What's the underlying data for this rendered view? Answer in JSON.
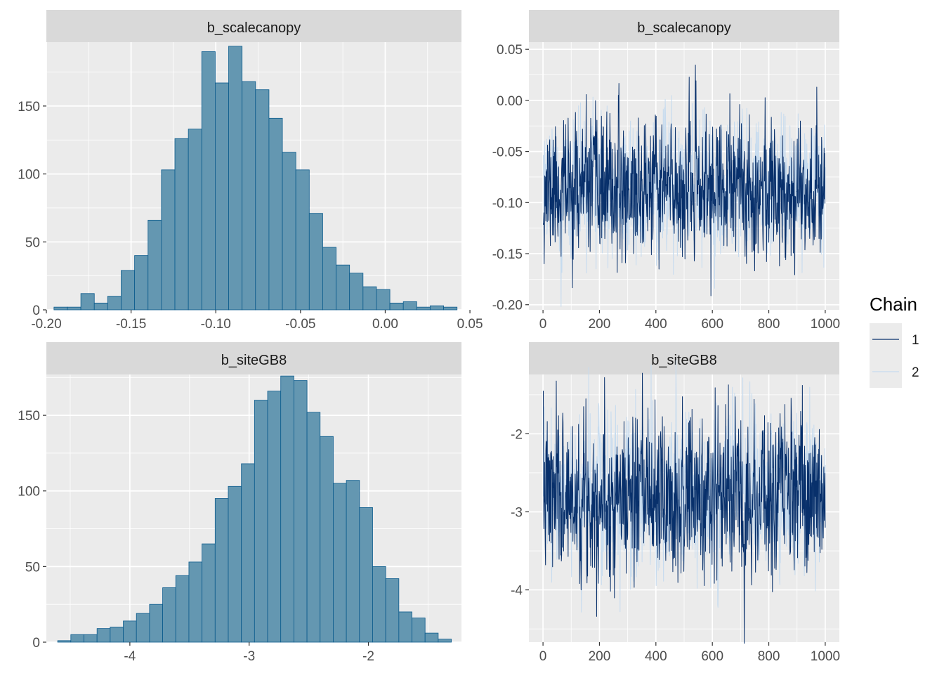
{
  "legend": {
    "title": "Chain",
    "entries": [
      {
        "label": "1",
        "color": "#08306b"
      },
      {
        "label": "2",
        "color": "#c6dbef"
      }
    ]
  },
  "colors": {
    "panel_bg": "#ebebeb",
    "strip_bg": "#d9d9d9",
    "grid": "#ffffff",
    "bar_fill": "#6497b1",
    "bar_stroke": "#0a5a8c"
  },
  "chart_data": [
    {
      "type": "bar",
      "subtype": "histogram",
      "title": "b_scalecanopy",
      "xlim": [
        -0.2,
        0.045
      ],
      "ylim": [
        0,
        197
      ],
      "xticks": [
        -0.2,
        -0.15,
        -0.1,
        -0.05,
        0.0,
        0.05
      ],
      "xtick_labels": [
        "-0.20",
        "-0.15",
        "-0.10",
        "-0.05",
        "0.00",
        "0.05"
      ],
      "yticks": [
        0,
        50,
        100,
        150
      ],
      "ytick_labels": [
        "0",
        "50",
        "100",
        "150"
      ],
      "bin_start": -0.1955,
      "bin_width": 0.00793,
      "values": [
        2,
        2,
        12,
        5,
        10,
        29,
        40,
        66,
        103,
        126,
        133,
        190,
        167,
        194,
        168,
        162,
        141,
        116,
        103,
        71,
        46,
        33,
        27,
        17,
        15,
        5,
        6,
        2,
        3,
        2
      ]
    },
    {
      "type": "line",
      "subtype": "trace",
      "title": "b_scalecanopy",
      "xlim": [
        -50,
        1050
      ],
      "ylim": [
        -0.205,
        0.057
      ],
      "xticks": [
        0,
        200,
        400,
        600,
        800,
        1000
      ],
      "xtick_labels": [
        "0",
        "200",
        "400",
        "600",
        "800",
        "1000"
      ],
      "yticks": [
        -0.2,
        -0.15,
        -0.1,
        -0.05,
        0.0,
        0.05
      ],
      "ytick_labels": [
        "-0.20",
        "-0.15",
        "-0.10",
        "-0.05",
        "0.00",
        "0.05"
      ],
      "iterations": 1000,
      "series": [
        {
          "name": "1",
          "mean": -0.086,
          "sd": 0.032,
          "seed": 11
        },
        {
          "name": "2",
          "mean": -0.086,
          "sd": 0.032,
          "seed": 29
        }
      ]
    },
    {
      "type": "bar",
      "subtype": "histogram",
      "title": "b_siteGB8",
      "xlim": [
        -4.7,
        -1.22
      ],
      "ylim": [
        0,
        177
      ],
      "xticks": [
        -4,
        -3,
        -2
      ],
      "xtick_labels": [
        "-4",
        "-3",
        "-2"
      ],
      "yticks": [
        0,
        50,
        100,
        150
      ],
      "ytick_labels": [
        "0",
        "50",
        "100",
        "150"
      ],
      "bin_start": -4.605,
      "bin_width": 0.11,
      "values": [
        1,
        5,
        5,
        9,
        10,
        14,
        19,
        25,
        36,
        44,
        53,
        65,
        95,
        103,
        118,
        160,
        166,
        176,
        173,
        152,
        136,
        105,
        107,
        89,
        50,
        42,
        20,
        16,
        6,
        2
      ]
    },
    {
      "type": "line",
      "subtype": "trace",
      "title": "b_siteGB8",
      "xlim": [
        -50,
        1050
      ],
      "ylim": [
        -4.67,
        -1.24
      ],
      "xticks": [
        0,
        200,
        400,
        600,
        800,
        1000
      ],
      "xtick_labels": [
        "0",
        "200",
        "400",
        "600",
        "800",
        "1000"
      ],
      "yticks": [
        -4,
        -3,
        -2
      ],
      "ytick_labels": [
        "-4",
        "-3",
        "-2"
      ],
      "iterations": 1000,
      "series": [
        {
          "name": "1",
          "mean": -2.8,
          "sd": 0.5,
          "seed": 7
        },
        {
          "name": "2",
          "mean": -2.8,
          "sd": 0.5,
          "seed": 43
        }
      ]
    }
  ]
}
